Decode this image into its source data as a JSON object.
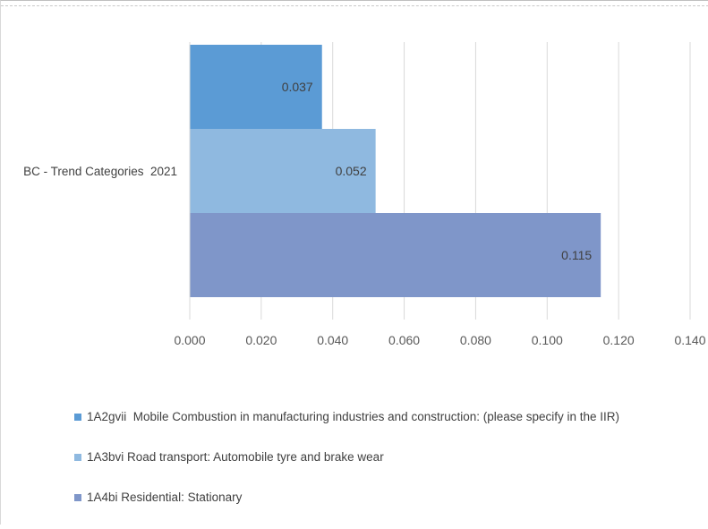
{
  "chart_data": {
    "type": "bar",
    "orientation": "horizontal",
    "categories": [
      "BC - Trend Categories  2021"
    ],
    "series": [
      {
        "name": "1A2gvii  Mobile Combustion in manufacturing industries and construction: (please specify in the IIR)",
        "values": [
          0.037
        ],
        "color": "#5b9bd5",
        "label": "0.037"
      },
      {
        "name": "1A3bvi Road transport: Automobile tyre and brake wear",
        "values": [
          0.052
        ],
        "color": "#8fb9e0",
        "label": "0.052"
      },
      {
        "name": "1A4bi Residential: Stationary",
        "values": [
          0.115
        ],
        "color": "#7f96c9",
        "label": "0.115"
      }
    ],
    "xlim": [
      0,
      0.14
    ],
    "xticks": [
      "0.000",
      "0.020",
      "0.040",
      "0.060",
      "0.080",
      "0.100",
      "0.120",
      "0.140"
    ],
    "grid": true,
    "legend_position": "bottom"
  }
}
